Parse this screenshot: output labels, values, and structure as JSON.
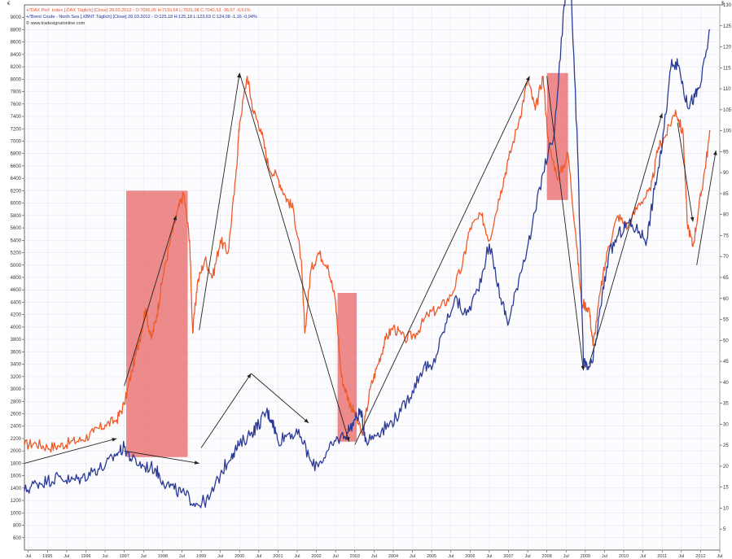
{
  "colors": {
    "dax": "#ef5a28",
    "brent": "#2b3a96",
    "highlight": "#e86060",
    "plot_bg": "#fcfcff",
    "grid": "#e3e3ea",
    "axis": "#444444",
    "arrow": "#222222"
  },
  "legend": {
    "dax_text": "+/'DAX Perf. Index [.DAX Täglich] [Close] 28.03.2012 - O:7056,05 H:7110,54 L:7031,08 C:7042,53 -36,07 -0,51%",
    "brent_text": "+/'Brent Crude - North Sea [.XBNT Täglich] [Close] 28.03.2012 - O:125,18 H:125,18 L:123,63 C:124,08 -1,16 -0,94%",
    "source_text": "© www.tradesignalonline.com"
  },
  "corner_left": "€",
  "corner_right": "$",
  "chart_data": {
    "type": "line",
    "title": "",
    "xlabel": "",
    "ylabel": "",
    "ylim_left": [
      400,
      9200
    ],
    "ylim_right": [
      0,
      130
    ],
    "xlim": [
      1994.4,
      2012.5
    ],
    "grid": true,
    "legend_position": "top-left",
    "y_ticks_left": [
      "600",
      "800",
      "1000",
      "1200",
      "1400",
      "1600",
      "1800",
      "2000",
      "2200",
      "2400",
      "2600",
      "2800",
      "3000",
      "3200",
      "3400",
      "3600",
      "3800",
      "4000",
      "4200",
      "4400",
      "4600",
      "4800",
      "5000",
      "5200",
      "5400",
      "5600",
      "5800",
      "6000",
      "6200",
      "6400",
      "6600",
      "6800",
      "7000",
      "7200",
      "7400",
      "7600",
      "7800",
      "8000",
      "8200",
      "8400",
      "8600",
      "8800",
      "9000"
    ],
    "y_ticks_right": [
      "5",
      "10",
      "15",
      "20",
      "25",
      "30",
      "35",
      "40",
      "45",
      "50",
      "55",
      "60",
      "65",
      "70",
      "75",
      "80",
      "85",
      "90",
      "95",
      "100",
      "105",
      "110",
      "115",
      "120",
      "125",
      "130"
    ],
    "x_ticks": [
      {
        "t": 1994.5,
        "label": "Jul"
      },
      {
        "t": 1995.0,
        "label": "1995"
      },
      {
        "t": 1995.5,
        "label": "Jul"
      },
      {
        "t": 1996.0,
        "label": "1996"
      },
      {
        "t": 1996.5,
        "label": "Jul"
      },
      {
        "t": 1997.0,
        "label": "1997"
      },
      {
        "t": 1997.5,
        "label": "Jul"
      },
      {
        "t": 1998.0,
        "label": "1998"
      },
      {
        "t": 1998.5,
        "label": "Jul"
      },
      {
        "t": 1999.0,
        "label": "1999"
      },
      {
        "t": 1999.5,
        "label": "Jul"
      },
      {
        "t": 2000.0,
        "label": "2000"
      },
      {
        "t": 2000.5,
        "label": "Jul"
      },
      {
        "t": 2001.0,
        "label": "2001"
      },
      {
        "t": 2001.5,
        "label": "Jul"
      },
      {
        "t": 2002.0,
        "label": "2002"
      },
      {
        "t": 2002.5,
        "label": "Jul"
      },
      {
        "t": 2003.0,
        "label": "2003"
      },
      {
        "t": 2003.5,
        "label": "Jul"
      },
      {
        "t": 2004.0,
        "label": "2004"
      },
      {
        "t": 2004.5,
        "label": "Jul"
      },
      {
        "t": 2005.0,
        "label": "2005"
      },
      {
        "t": 2005.5,
        "label": "Jul"
      },
      {
        "t": 2006.0,
        "label": "2006"
      },
      {
        "t": 2006.5,
        "label": "Jul"
      },
      {
        "t": 2007.0,
        "label": "2007"
      },
      {
        "t": 2007.5,
        "label": "Jul"
      },
      {
        "t": 2008.0,
        "label": "2008"
      },
      {
        "t": 2008.5,
        "label": "Jul"
      },
      {
        "t": 2009.0,
        "label": "2009"
      },
      {
        "t": 2009.5,
        "label": "Jul"
      },
      {
        "t": 2010.0,
        "label": "2010"
      },
      {
        "t": 2010.5,
        "label": "Jul"
      },
      {
        "t": 2011.0,
        "label": "2011"
      },
      {
        "t": 2011.5,
        "label": "Jul"
      },
      {
        "t": 2012.0,
        "label": "2012"
      },
      {
        "t": 2012.5,
        "label": "Jul"
      }
    ],
    "series": [
      {
        "name": "DAX Perf. Index",
        "axis": "left",
        "points": [
          [
            1994.4,
            2100
          ],
          [
            1994.7,
            2120
          ],
          [
            1995.0,
            2060
          ],
          [
            1995.3,
            2080
          ],
          [
            1995.6,
            2140
          ],
          [
            1995.9,
            2180
          ],
          [
            1996.2,
            2300
          ],
          [
            1996.5,
            2420
          ],
          [
            1996.8,
            2500
          ],
          [
            1997.0,
            2750
          ],
          [
            1997.2,
            3300
          ],
          [
            1997.4,
            3800
          ],
          [
            1997.55,
            4300
          ],
          [
            1997.7,
            3800
          ],
          [
            1997.85,
            4200
          ],
          [
            1998.0,
            4800
          ],
          [
            1998.2,
            5400
          ],
          [
            1998.4,
            5900
          ],
          [
            1998.55,
            6150
          ],
          [
            1998.7,
            5400
          ],
          [
            1998.78,
            3900
          ],
          [
            1998.9,
            4700
          ],
          [
            1999.1,
            5100
          ],
          [
            1999.3,
            4800
          ],
          [
            1999.5,
            5400
          ],
          [
            1999.7,
            5200
          ],
          [
            1999.9,
            6400
          ],
          [
            2000.0,
            7300
          ],
          [
            2000.2,
            8050
          ],
          [
            2000.35,
            7500
          ],
          [
            2000.55,
            7200
          ],
          [
            2000.75,
            6600
          ],
          [
            2001.0,
            6400
          ],
          [
            2001.2,
            6100
          ],
          [
            2001.4,
            5900
          ],
          [
            2001.6,
            5100
          ],
          [
            2001.7,
            3900
          ],
          [
            2001.85,
            4900
          ],
          [
            2002.05,
            5200
          ],
          [
            2002.3,
            5000
          ],
          [
            2002.5,
            4400
          ],
          [
            2002.65,
            3200
          ],
          [
            2002.85,
            2800
          ],
          [
            2003.0,
            2600
          ],
          [
            2003.2,
            2250
          ],
          [
            2003.4,
            3000
          ],
          [
            2003.6,
            3400
          ],
          [
            2003.8,
            3800
          ],
          [
            2004.0,
            4000
          ],
          [
            2004.3,
            3800
          ],
          [
            2004.6,
            3900
          ],
          [
            2004.9,
            4200
          ],
          [
            2005.2,
            4300
          ],
          [
            2005.5,
            4500
          ],
          [
            2005.8,
            5000
          ],
          [
            2006.0,
            5600
          ],
          [
            2006.3,
            5800
          ],
          [
            2006.5,
            5400
          ],
          [
            2006.8,
            6200
          ],
          [
            2007.0,
            6700
          ],
          [
            2007.3,
            7400
          ],
          [
            2007.5,
            8000
          ],
          [
            2007.7,
            7500
          ],
          [
            2007.9,
            8050
          ],
          [
            2008.05,
            6900
          ],
          [
            2008.3,
            6400
          ],
          [
            2008.55,
            6800
          ],
          [
            2008.75,
            5500
          ],
          [
            2008.9,
            4400
          ],
          [
            2009.1,
            4300
          ],
          [
            2009.2,
            3700
          ],
          [
            2009.4,
            4600
          ],
          [
            2009.6,
            5300
          ],
          [
            2009.85,
            5800
          ],
          [
            2010.1,
            5600
          ],
          [
            2010.4,
            6000
          ],
          [
            2010.7,
            6200
          ],
          [
            2010.9,
            6900
          ],
          [
            2011.1,
            7100
          ],
          [
            2011.35,
            7500
          ],
          [
            2011.55,
            7100
          ],
          [
            2011.65,
            5700
          ],
          [
            2011.8,
            5300
          ],
          [
            2011.95,
            5900
          ],
          [
            2012.1,
            6500
          ],
          [
            2012.25,
            7150
          ]
        ]
      },
      {
        "name": "Brent Crude - North Sea",
        "axis": "right",
        "points": [
          [
            1994.4,
            14
          ],
          [
            1994.7,
            16
          ],
          [
            1995.0,
            16.5
          ],
          [
            1995.3,
            17.5
          ],
          [
            1995.6,
            16.5
          ],
          [
            1995.9,
            17.2
          ],
          [
            1996.2,
            19
          ],
          [
            1996.5,
            20
          ],
          [
            1996.8,
            23
          ],
          [
            1997.0,
            24.5
          ],
          [
            1997.2,
            21.5
          ],
          [
            1997.5,
            20
          ],
          [
            1997.8,
            19.5
          ],
          [
            1998.0,
            16.5
          ],
          [
            1998.3,
            14.5
          ],
          [
            1998.6,
            13
          ],
          [
            1998.9,
            11
          ],
          [
            1999.2,
            12
          ],
          [
            1999.5,
            18
          ],
          [
            1999.8,
            23
          ],
          [
            2000.0,
            25
          ],
          [
            2000.3,
            28
          ],
          [
            2000.5,
            30
          ],
          [
            2000.7,
            33
          ],
          [
            2000.85,
            31
          ],
          [
            2001.0,
            26
          ],
          [
            2001.3,
            28
          ],
          [
            2001.6,
            27
          ],
          [
            2001.9,
            20
          ],
          [
            2002.2,
            22
          ],
          [
            2002.5,
            26
          ],
          [
            2002.8,
            28
          ],
          [
            2003.0,
            31
          ],
          [
            2003.15,
            33
          ],
          [
            2003.3,
            26
          ],
          [
            2003.6,
            28
          ],
          [
            2003.9,
            30
          ],
          [
            2004.2,
            33
          ],
          [
            2004.5,
            38
          ],
          [
            2004.8,
            44
          ],
          [
            2005.0,
            43
          ],
          [
            2005.3,
            52
          ],
          [
            2005.6,
            60
          ],
          [
            2005.9,
            56
          ],
          [
            2006.2,
            62
          ],
          [
            2006.5,
            73
          ],
          [
            2006.8,
            60
          ],
          [
            2007.0,
            54
          ],
          [
            2007.3,
            66
          ],
          [
            2007.6,
            76
          ],
          [
            2007.9,
            90
          ],
          [
            2008.2,
            100
          ],
          [
            2008.45,
            130
          ],
          [
            2008.6,
            140
          ],
          [
            2008.8,
            95
          ],
          [
            2008.95,
            45
          ],
          [
            2009.05,
            43
          ],
          [
            2009.2,
            45
          ],
          [
            2009.4,
            58
          ],
          [
            2009.6,
            70
          ],
          [
            2009.85,
            75
          ],
          [
            2010.1,
            78
          ],
          [
            2010.4,
            76
          ],
          [
            2010.6,
            74
          ],
          [
            2010.8,
            86
          ],
          [
            2011.0,
            96
          ],
          [
            2011.25,
            117
          ],
          [
            2011.45,
            115
          ],
          [
            2011.65,
            106
          ],
          [
            2011.85,
            108
          ],
          [
            2012.0,
            111
          ],
          [
            2012.25,
            124
          ]
        ]
      }
    ],
    "highlight_boxes": [
      {
        "x": [
          1997.05,
          1998.65
        ],
        "y": [
          1900,
          6200
        ]
      },
      {
        "x": [
          2002.55,
          2003.05
        ],
        "y": [
          2150,
          4550
        ]
      },
      {
        "x": [
          2008.0,
          2008.55
        ],
        "y": [
          6050,
          8100
        ]
      }
    ],
    "trend_arrows": [
      {
        "from": [
          1994.4,
          1800
        ],
        "to": [
          1996.8,
          2200
        ]
      },
      {
        "from": [
          1997.0,
          3050
        ],
        "to": [
          1998.35,
          5800
        ]
      },
      {
        "from": [
          1997.0,
          2000
        ],
        "to": [
          1998.95,
          1800
        ]
      },
      {
        "from": [
          1998.95,
          3950
        ],
        "to": [
          2000.0,
          8100
        ]
      },
      {
        "from": [
          2000.0,
          8100
        ],
        "to": [
          2002.85,
          2150
        ]
      },
      {
        "from": [
          1999.0,
          2050
        ],
        "to": [
          2000.3,
          3250
        ]
      },
      {
        "from": [
          2000.3,
          3250
        ],
        "to": [
          2001.8,
          2450
        ]
      },
      {
        "from": [
          2003.0,
          2100
        ],
        "to": [
          2007.55,
          8050
        ]
      },
      {
        "from": [
          2008.0,
          8050
        ],
        "to": [
          2008.95,
          3300
        ]
      },
      {
        "from": [
          2009.1,
          3400
        ],
        "to": [
          2011.0,
          7450
        ]
      },
      {
        "from": [
          2011.4,
          7300
        ],
        "to": [
          2011.8,
          5700
        ]
      },
      {
        "from": [
          2011.9,
          5000
        ],
        "to": [
          2012.4,
          6850
        ]
      }
    ]
  }
}
